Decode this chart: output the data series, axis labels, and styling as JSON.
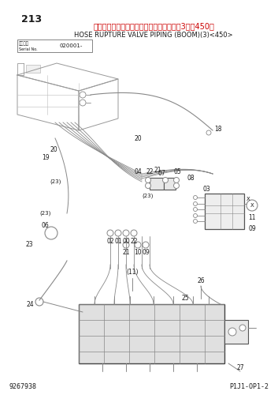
{
  "page_number": "213",
  "title_japanese": "ホースラプチャバルブ配管（ブーム）　（3）＜450＞",
  "title_english": "HOSE RUPTURE VALVE PIPING (BOOM)(3)<450>",
  "serial_label_jp": "適用機種",
  "serial_label_en": "Serial No.",
  "serial_number": "020001-",
  "part_number_bottom_left": "9267938",
  "part_number_bottom_right": "P1J1-OP1-2",
  "bg_color": "#ffffff",
  "text_color": "#1a1a1a",
  "title_color": "#cc0000",
  "line_color": "#888888",
  "figsize": [
    3.53,
    5.0
  ],
  "dpi": 100
}
